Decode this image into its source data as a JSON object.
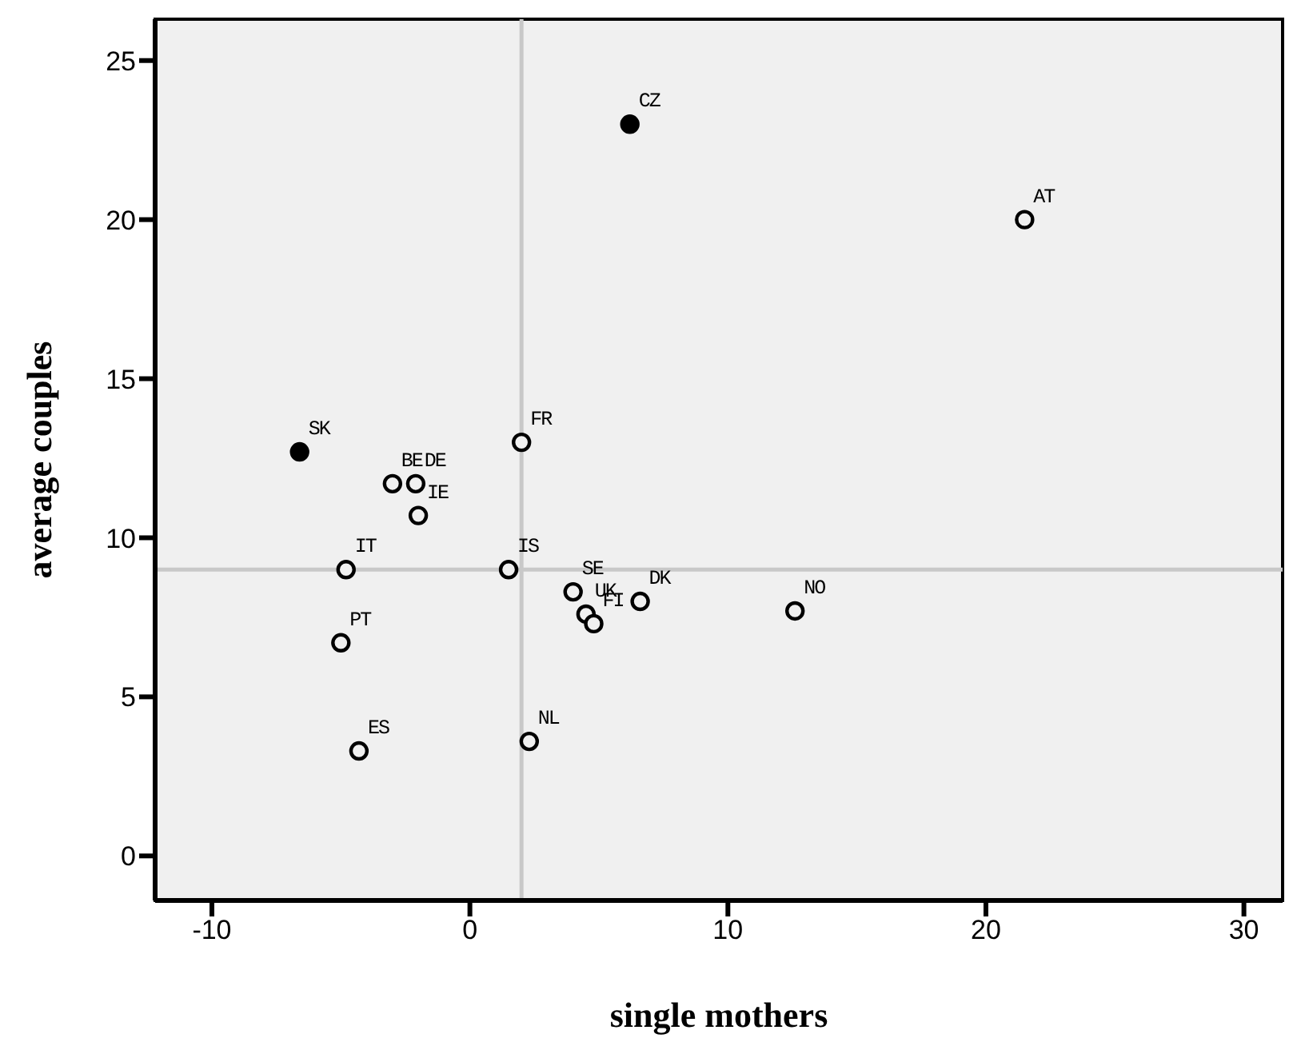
{
  "chart_data": {
    "type": "scatter",
    "xlabel": "single mothers",
    "ylabel": "average couples",
    "xlim": [
      -12.2,
      31.5
    ],
    "ylim": [
      -1.4,
      26.3
    ],
    "xticks": [
      -10,
      0,
      10,
      20,
      30
    ],
    "yticks": [
      0,
      5,
      10,
      15,
      20,
      25
    ],
    "marker": "circle",
    "series": [
      {
        "color": "#000000",
        "x": [
          21.5,
          2.0,
          -3.0,
          -2.1,
          -2.0,
          -4.8,
          1.5,
          4.0,
          4.5,
          4.8,
          6.6,
          12.6,
          -5.0,
          -4.3,
          2.3
        ],
        "values": [
          20.0,
          13.0,
          11.7,
          11.7,
          10.7,
          9.0,
          9.0,
          8.3,
          7.6,
          7.3,
          8.0,
          7.7,
          6.7,
          3.3,
          3.6
        ]
      },
      {
        "color": "#000000",
        "marker": "circle",
        "x": [
          6.2,
          -6.6
        ],
        "values": [
          23.0,
          12.7
        ]
      }
    ],
    "ref_lines": [
      {
        "axis": "x",
        "value": 2,
        "color": "#c8c8c8"
      },
      {
        "axis": "y",
        "value": 9,
        "color": "#c8c8c8"
      }
    ],
    "annotations": [
      {
        "text": "AT",
        "x": 21.5,
        "y": 20.0
      },
      {
        "text": "FR",
        "x": 2.0,
        "y": 13.0
      },
      {
        "text": "BE",
        "x": -3.0,
        "y": 11.7
      },
      {
        "text": "DE",
        "x": -2.1,
        "y": 11.7
      },
      {
        "text": "IE",
        "x": -2.0,
        "y": 10.7
      },
      {
        "text": "IT",
        "x": -4.8,
        "y": 9.0
      },
      {
        "text": "IS",
        "x": 1.5,
        "y": 9.0
      },
      {
        "text": "SE",
        "x": 4.0,
        "y": 8.3
      },
      {
        "text": "UK",
        "x": 4.5,
        "y": 7.6
      },
      {
        "text": "FI",
        "x": 4.8,
        "y": 7.3
      },
      {
        "text": "DK",
        "x": 6.6,
        "y": 8.0
      },
      {
        "text": "NO",
        "x": 12.6,
        "y": 7.7
      },
      {
        "text": "PT",
        "x": -5.0,
        "y": 6.7
      },
      {
        "text": "ES",
        "x": -4.3,
        "y": 3.3
      },
      {
        "text": "NL",
        "x": 2.3,
        "y": 3.6
      },
      {
        "text": "CZ",
        "x": 6.2,
        "y": 23.0
      },
      {
        "text": "SK",
        "x": -6.6,
        "y": 12.7
      }
    ]
  }
}
